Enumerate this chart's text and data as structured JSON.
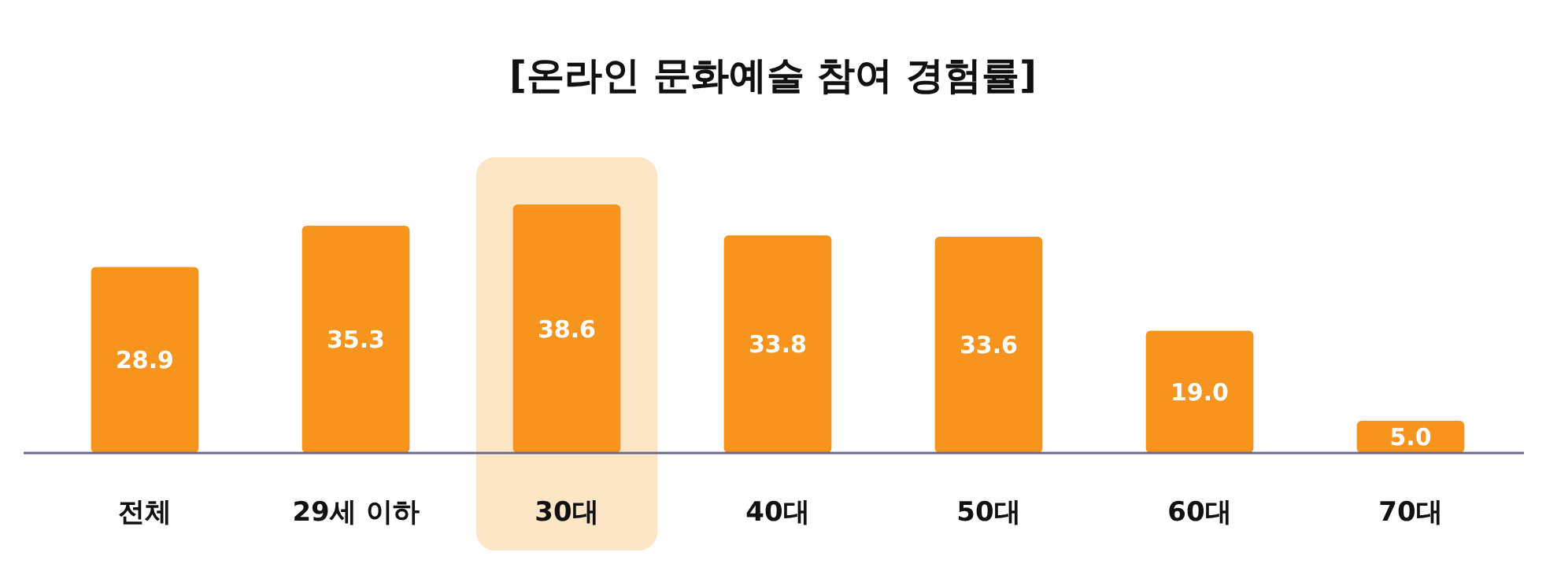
{
  "chart_data": {
    "type": "bar",
    "title": "[온라인 문화예술 참여 경험률]",
    "categories": [
      "전체",
      "29세 이하",
      "30대",
      "40대",
      "50대",
      "60대",
      "70대"
    ],
    "values": [
      28.9,
      35.3,
      38.6,
      33.8,
      33.6,
      19.0,
      5.0
    ],
    "value_labels": [
      "28.9",
      "35.3",
      "38.6",
      "33.8",
      "33.6",
      "19.0",
      "5.0"
    ],
    "color": "#f7941d",
    "bands": [
      {
        "axis": "x",
        "from": "30대",
        "to": "30대",
        "color": "#fde6c6"
      }
    ]
  }
}
